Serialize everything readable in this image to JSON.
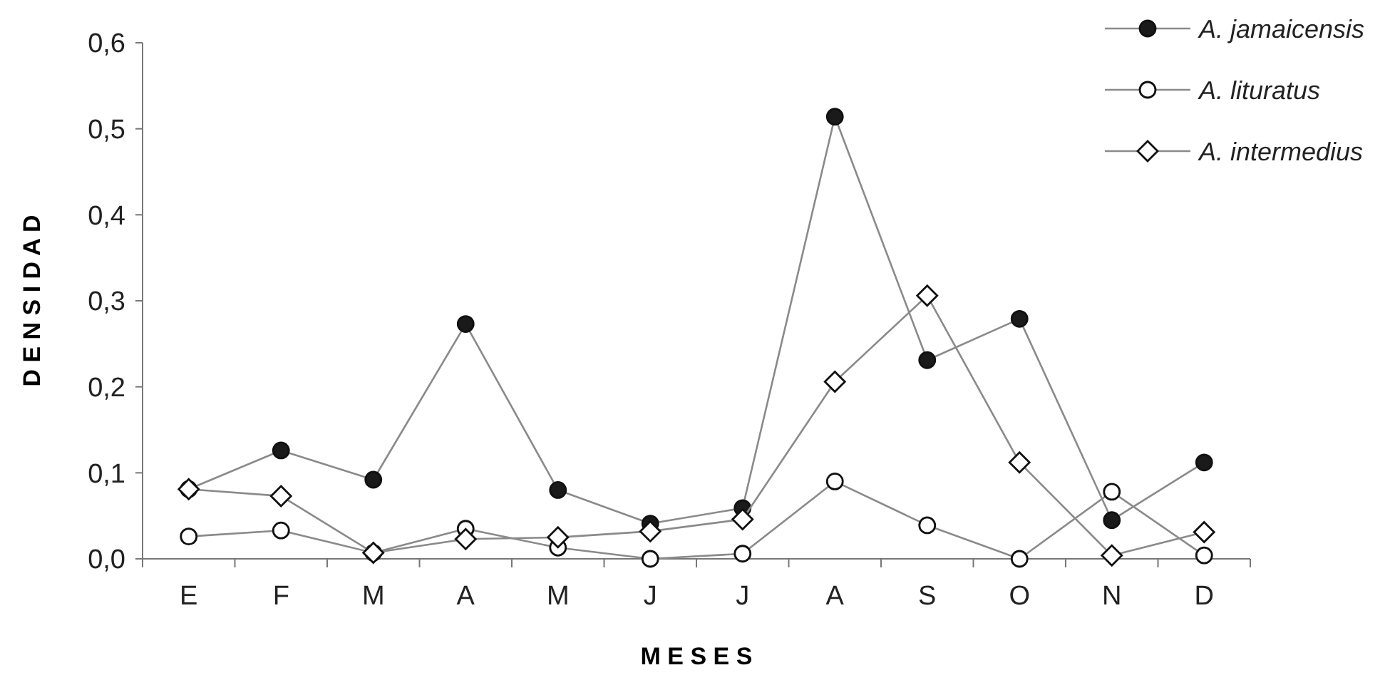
{
  "chart_data": {
    "type": "line",
    "xlabel": "M E S E S",
    "ylabel": "D E N S I D A D",
    "categories": [
      "E",
      "F",
      "M",
      "A",
      "M",
      "J",
      "J",
      "A",
      "S",
      "O",
      "N",
      "D"
    ],
    "series": [
      {
        "name": "A. jamaicensis",
        "color": "#1a1a1a",
        "marker": "circle",
        "values": [
          0.081,
          0.126,
          0.092,
          0.273,
          0.08,
          0.041,
          0.059,
          0.514,
          0.231,
          0.279,
          0.045,
          0.112
        ]
      },
      {
        "name": "A. lituratus",
        "color": "#ffffff",
        "marker": "circle",
        "values": [
          0.026,
          0.033,
          0.007,
          0.035,
          0.013,
          0.0,
          0.006,
          0.09,
          0.039,
          0.0,
          0.078,
          0.004
        ]
      },
      {
        "name": "A. intermedius",
        "color": "#ffffff",
        "marker": "diamond",
        "values": [
          0.081,
          0.073,
          0.007,
          0.023,
          0.025,
          0.032,
          0.046,
          0.206,
          0.306,
          0.112,
          0.004,
          0.031
        ]
      }
    ],
    "ylim": [
      0,
      0.6
    ],
    "yticks": [
      {
        "value": 0,
        "label": "0,0"
      },
      {
        "value": 0.1,
        "label": "0,1"
      },
      {
        "value": 0.2,
        "label": "0,2"
      },
      {
        "value": 0.3,
        "label": "0,3"
      },
      {
        "value": 0.4,
        "label": "0,4"
      },
      {
        "value": 0.5,
        "label": "0,5"
      },
      {
        "value": 0.6,
        "label": "0,6"
      }
    ],
    "grid": false,
    "legend": "top right",
    "line_style": "solid"
  }
}
